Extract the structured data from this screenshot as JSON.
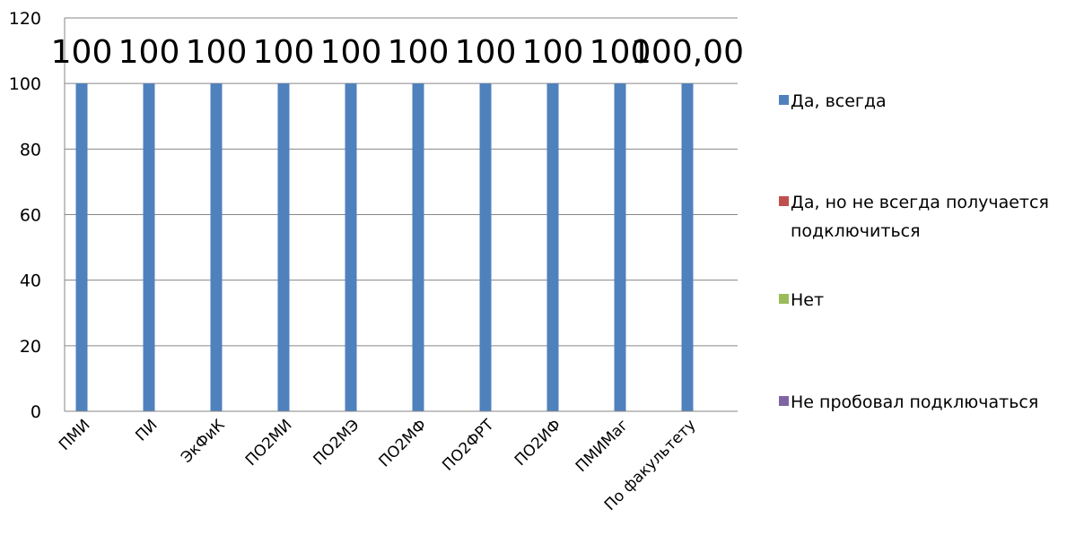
{
  "chart_data": {
    "type": "bar",
    "categories": [
      "ПМИ",
      "ПИ",
      "ЭкФиК",
      "ПО2МИ",
      "ПО2МЭ",
      "ПО2МФ",
      "ПО2ФРТ",
      "ПО2ИФ",
      "ПМИМаг",
      "По факультету"
    ],
    "series": [
      {
        "name": "Да, всегда",
        "values": [
          100,
          100,
          100,
          100,
          100,
          100,
          100,
          100,
          100,
          100
        ],
        "labels": [
          "100",
          "100",
          "100",
          "100",
          "100",
          "100",
          "100",
          "100",
          "100",
          "100,00"
        ],
        "color": "#4F81BD"
      },
      {
        "name": "Да, но не всегда получается подключиться",
        "name_lines": [
          "Да, но не всегда получается",
          "подключиться"
        ],
        "values": [
          0,
          0,
          0,
          0,
          0,
          0,
          0,
          0,
          0,
          0
        ],
        "color": "#C0504D"
      },
      {
        "name": "Нет",
        "values": [
          0,
          0,
          0,
          0,
          0,
          0,
          0,
          0,
          0,
          0
        ],
        "color": "#9BBB59"
      },
      {
        "name": "Не пробовал подключаться",
        "values": [
          0,
          0,
          0,
          0,
          0,
          0,
          0,
          0,
          0,
          0
        ],
        "color": "#8064A2"
      }
    ],
    "yticks": [
      "0",
      "20",
      "40",
      "60",
      "80",
      "100",
      "120"
    ],
    "ylim": [
      0,
      120
    ],
    "grid": true,
    "legend": "right"
  }
}
